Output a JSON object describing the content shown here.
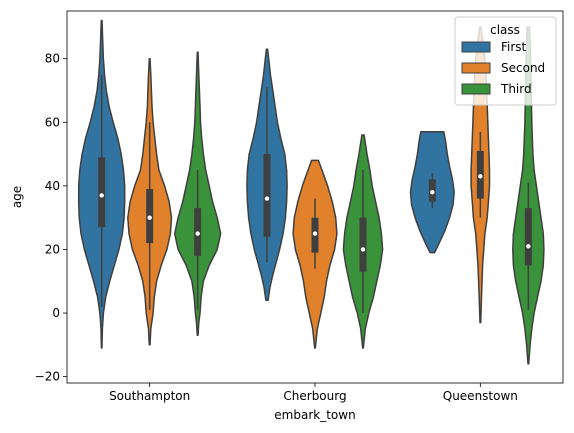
{
  "chart_data": {
    "type": "violin",
    "xlabel": "embark_town",
    "ylabel": "age",
    "categories": [
      "Southampton",
      "Cherbourg",
      "Queenstown"
    ],
    "ylim": [
      -22,
      95
    ],
    "yticks": [
      -20,
      0,
      20,
      40,
      60,
      80
    ],
    "grid": false,
    "legend": {
      "title": "class",
      "placement": "top-right",
      "entries": [
        "First",
        "Second",
        "Third"
      ]
    },
    "series": [
      {
        "name": "First",
        "color": "#3274a1",
        "violins": [
          {
            "category": "Southampton",
            "range": [
              -11,
              92
            ],
            "q1": 27,
            "median": 37,
            "q3": 49,
            "whisker_low": 2,
            "whisker_high": 75,
            "profile": [
              [
                -11,
                0.2
              ],
              [
                -5,
                0.6
              ],
              [
                0,
                1.5
              ],
              [
                5,
                3.5
              ],
              [
                10,
                7
              ],
              [
                15,
                11
              ],
              [
                20,
                15
              ],
              [
                25,
                18
              ],
              [
                30,
                19.5
              ],
              [
                35,
                20
              ],
              [
                40,
                20
              ],
              [
                45,
                19
              ],
              [
                50,
                17
              ],
              [
                55,
                14
              ],
              [
                60,
                10
              ],
              [
                65,
                6.5
              ],
              [
                70,
                4
              ],
              [
                75,
                2.5
              ],
              [
                80,
                1.5
              ],
              [
                85,
                1
              ],
              [
                92,
                0.3
              ]
            ]
          },
          {
            "category": "Cherbourg",
            "range": [
              4,
              83
            ],
            "q1": 24,
            "median": 36,
            "q3": 50,
            "whisker_low": 16,
            "whisker_high": 71,
            "profile": [
              [
                4,
                1
              ],
              [
                8,
                2.5
              ],
              [
                12,
                5
              ],
              [
                16,
                8
              ],
              [
                20,
                11
              ],
              [
                25,
                14
              ],
              [
                30,
                16
              ],
              [
                35,
                17
              ],
              [
                40,
                17.5
              ],
              [
                45,
                17
              ],
              [
                50,
                15.5
              ],
              [
                55,
                12
              ],
              [
                60,
                9
              ],
              [
                65,
                7
              ],
              [
                70,
                5
              ],
              [
                75,
                3
              ],
              [
                80,
                1.5
              ],
              [
                83,
                0.5
              ]
            ]
          },
          {
            "category": "Queenstown",
            "range": [
              19,
              57
            ],
            "q1": 35,
            "median": 38,
            "q3": 42,
            "whisker_low": 33,
            "whisker_high": 44,
            "profile": [
              [
                19,
                2
              ],
              [
                22,
                6
              ],
              [
                26,
                11
              ],
              [
                30,
                15
              ],
              [
                34,
                18
              ],
              [
                38,
                19
              ],
              [
                42,
                17.5
              ],
              [
                46,
                15
              ],
              [
                50,
                13
              ],
              [
                54,
                11.5
              ],
              [
                57,
                10
              ]
            ]
          }
        ]
      },
      {
        "name": "Second",
        "color": "#e1812c",
        "violins": [
          {
            "category": "Southampton",
            "range": [
              -10,
              80
            ],
            "q1": 22,
            "median": 30,
            "q3": 39,
            "whisker_low": 1,
            "whisker_high": 60,
            "profile": [
              [
                -10,
                0.3
              ],
              [
                -5,
                1
              ],
              [
                0,
                3
              ],
              [
                5,
                4
              ],
              [
                10,
                6
              ],
              [
                15,
                10
              ],
              [
                20,
                15
              ],
              [
                25,
                18
              ],
              [
                30,
                19
              ],
              [
                35,
                17
              ],
              [
                40,
                13
              ],
              [
                45,
                8
              ],
              [
                50,
                6
              ],
              [
                55,
                4.5
              ],
              [
                60,
                3
              ],
              [
                65,
                2
              ],
              [
                70,
                1.5
              ],
              [
                75,
                1
              ],
              [
                80,
                0.3
              ]
            ]
          },
          {
            "category": "Cherbourg",
            "range": [
              -11,
              48
            ],
            "q1": 19,
            "median": 25,
            "q3": 30,
            "whisker_low": 14,
            "whisker_high": 36,
            "profile": [
              [
                -11,
                0.3
              ],
              [
                -5,
                2
              ],
              [
                0,
                5
              ],
              [
                5,
                8
              ],
              [
                10,
                10
              ],
              [
                15,
                13
              ],
              [
                20,
                17
              ],
              [
                25,
                19
              ],
              [
                30,
                18
              ],
              [
                35,
                15
              ],
              [
                40,
                11
              ],
              [
                44,
                7
              ],
              [
                48,
                3
              ]
            ]
          },
          {
            "category": "Queenstown",
            "range": [
              -3,
              90
            ],
            "q1": 36,
            "median": 43,
            "q3": 51,
            "whisker_low": 30,
            "whisker_high": 57,
            "profile": [
              [
                -3,
                0.3
              ],
              [
                5,
                1
              ],
              [
                15,
                2
              ],
              [
                25,
                4
              ],
              [
                30,
                6
              ],
              [
                35,
                7
              ],
              [
                40,
                8
              ],
              [
                45,
                8
              ],
              [
                50,
                7.5
              ],
              [
                55,
                7
              ],
              [
                60,
                6.5
              ],
              [
                70,
                5.5
              ],
              [
                80,
                4
              ],
              [
                86,
                2
              ],
              [
                90,
                0.5
              ]
            ]
          }
        ]
      },
      {
        "name": "Third",
        "color": "#3a923a",
        "violins": [
          {
            "category": "Southampton",
            "range": [
              -7,
              82
            ],
            "q1": 18,
            "median": 25,
            "q3": 33,
            "whisker_low": 1,
            "whisker_high": 45,
            "profile": [
              [
                -7,
                0.3
              ],
              [
                -3,
                1
              ],
              [
                0,
                2
              ],
              [
                5,
                3
              ],
              [
                10,
                5
              ],
              [
                15,
                10
              ],
              [
                20,
                17
              ],
              [
                25,
                20
              ],
              [
                30,
                17
              ],
              [
                35,
                13
              ],
              [
                40,
                10
              ],
              [
                45,
                7
              ],
              [
                50,
                5
              ],
              [
                55,
                3.5
              ],
              [
                60,
                2.5
              ],
              [
                65,
                2
              ],
              [
                70,
                1.5
              ],
              [
                75,
                1
              ],
              [
                82,
                0.3
              ]
            ]
          },
          {
            "category": "Cherbourg",
            "range": [
              -11,
              56
            ],
            "q1": 13,
            "median": 20,
            "q3": 30,
            "whisker_low": 0,
            "whisker_high": 45,
            "profile": [
              [
                -11,
                0.3
              ],
              [
                -5,
                2
              ],
              [
                0,
                5
              ],
              [
                5,
                9
              ],
              [
                10,
                12
              ],
              [
                15,
                15
              ],
              [
                20,
                17
              ],
              [
                25,
                16
              ],
              [
                30,
                14
              ],
              [
                35,
                11
              ],
              [
                40,
                8
              ],
              [
                45,
                6
              ],
              [
                50,
                3.5
              ],
              [
                56,
                1
              ]
            ]
          },
          {
            "category": "Queenstown",
            "range": [
              -16,
              90
            ],
            "q1": 15,
            "median": 21,
            "q3": 33,
            "whisker_low": 1,
            "whisker_high": 41,
            "profile": [
              [
                -16,
                0.3
              ],
              [
                -10,
                1.5
              ],
              [
                -5,
                3
              ],
              [
                0,
                5
              ],
              [
                5,
                8
              ],
              [
                10,
                11
              ],
              [
                15,
                13
              ],
              [
                20,
                13.5
              ],
              [
                25,
                13
              ],
              [
                30,
                11
              ],
              [
                35,
                9
              ],
              [
                40,
                7
              ],
              [
                45,
                5
              ],
              [
                50,
                4
              ],
              [
                60,
                3
              ],
              [
                70,
                2.5
              ],
              [
                80,
                2
              ],
              [
                90,
                1
              ]
            ]
          }
        ]
      }
    ]
  }
}
